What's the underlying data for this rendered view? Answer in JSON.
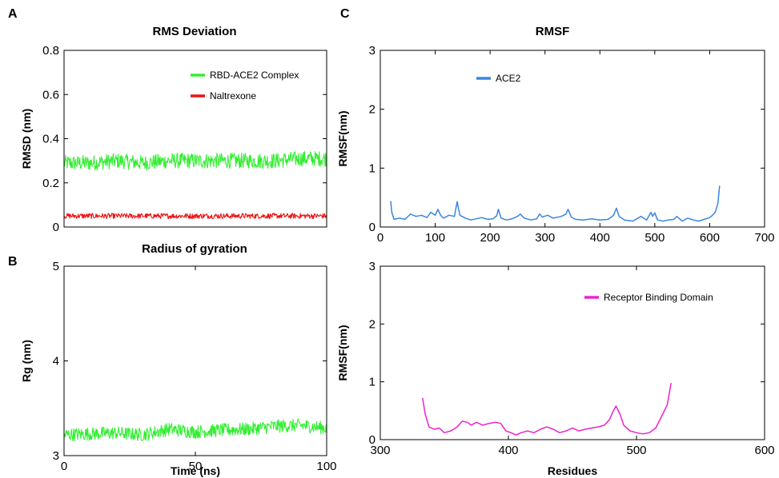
{
  "panel_letters": [
    "A",
    "B",
    "C"
  ],
  "chart_data": [
    {
      "id": "rmsd",
      "type": "line",
      "title": "RMS Deviation",
      "xlabel": "",
      "ylabel": "RMSD (nm)",
      "xlim": [
        0,
        100
      ],
      "ylim": [
        0,
        0.8
      ],
      "yticks": [
        0,
        0.2,
        0.4,
        0.6,
        0.8
      ],
      "ytick_labels": [
        "0",
        "0.2",
        "0.4",
        "0.6",
        "0.8"
      ],
      "xticks": [],
      "xtick_labels": [],
      "grid": false,
      "legend": "top-right",
      "series": [
        {
          "name": "RBD-ACE2 Complex",
          "color": "#33ee33",
          "style": "noisy",
          "x": [
            0,
            10,
            20,
            30,
            40,
            50,
            60,
            70,
            80,
            90,
            100
          ],
          "y": [
            0.29,
            0.29,
            0.3,
            0.29,
            0.3,
            0.3,
            0.3,
            0.3,
            0.3,
            0.31,
            0.31
          ],
          "noise": 0.035
        },
        {
          "name": "Naltrexone",
          "color": "#ee1111",
          "style": "noisy",
          "x": [
            0,
            20,
            40,
            60,
            80,
            100
          ],
          "y": [
            0.05,
            0.05,
            0.05,
            0.05,
            0.05,
            0.05
          ],
          "noise": 0.012
        }
      ]
    },
    {
      "id": "rg",
      "type": "line",
      "title": "Radius of gyration",
      "xlabel": "Time (ns)",
      "ylabel": "Rg (nm)",
      "xlim": [
        0,
        100
      ],
      "ylim": [
        3,
        5
      ],
      "yticks": [
        3,
        4,
        5
      ],
      "ytick_labels": [
        "3",
        "4",
        "5"
      ],
      "xticks": [
        0,
        50,
        100
      ],
      "xtick_labels": [
        "0",
        "50",
        "100"
      ],
      "grid": false,
      "legend": "none",
      "series": [
        {
          "name": "",
          "color": "#33ee33",
          "style": "noisy",
          "x": [
            0,
            10,
            20,
            30,
            40,
            50,
            60,
            70,
            80,
            90,
            100
          ],
          "y": [
            3.22,
            3.23,
            3.24,
            3.22,
            3.28,
            3.25,
            3.27,
            3.28,
            3.31,
            3.32,
            3.29
          ],
          "noise": 0.07
        }
      ]
    },
    {
      "id": "rmsf_ace2",
      "type": "line",
      "title": "RMSF",
      "xlabel": "",
      "ylabel": "RMSF(nm)",
      "xlim": [
        0,
        700
      ],
      "ylim": [
        0,
        3
      ],
      "yticks": [
        0,
        1,
        2,
        3
      ],
      "ytick_labels": [
        "0",
        "1",
        "2",
        "3"
      ],
      "xticks": [
        0,
        100,
        200,
        300,
        400,
        500,
        600,
        700
      ],
      "xtick_labels": [
        "0",
        "100",
        "200",
        "300",
        "400",
        "500",
        "600",
        "700"
      ],
      "grid": false,
      "legend": "top-center",
      "series": [
        {
          "name": "ACE2",
          "color": "#3a86e0",
          "style": "plain",
          "x": [
            19,
            21,
            25,
            35,
            45,
            55,
            65,
            75,
            85,
            92,
            100,
            105,
            110,
            115,
            125,
            135,
            140,
            145,
            155,
            165,
            175,
            185,
            195,
            205,
            212,
            215,
            220,
            230,
            240,
            250,
            255,
            262,
            275,
            285,
            290,
            295,
            305,
            315,
            330,
            338,
            342,
            348,
            355,
            370,
            385,
            400,
            415,
            425,
            430,
            435,
            445,
            460,
            475,
            485,
            493,
            496,
            500,
            505,
            515,
            525,
            535,
            540,
            550,
            560,
            570,
            580,
            590,
            600,
            605,
            610,
            615,
            618
          ],
          "y": [
            0.44,
            0.25,
            0.13,
            0.15,
            0.13,
            0.22,
            0.18,
            0.2,
            0.16,
            0.25,
            0.2,
            0.3,
            0.2,
            0.15,
            0.2,
            0.18,
            0.43,
            0.2,
            0.15,
            0.12,
            0.14,
            0.16,
            0.13,
            0.14,
            0.19,
            0.3,
            0.15,
            0.12,
            0.14,
            0.18,
            0.22,
            0.15,
            0.12,
            0.14,
            0.22,
            0.17,
            0.2,
            0.15,
            0.18,
            0.22,
            0.3,
            0.17,
            0.13,
            0.12,
            0.14,
            0.12,
            0.13,
            0.2,
            0.32,
            0.18,
            0.12,
            0.1,
            0.18,
            0.12,
            0.25,
            0.18,
            0.24,
            0.12,
            0.1,
            0.12,
            0.13,
            0.18,
            0.1,
            0.15,
            0.12,
            0.1,
            0.13,
            0.16,
            0.2,
            0.25,
            0.4,
            0.7
          ]
        }
      ]
    },
    {
      "id": "rmsf_rbd",
      "type": "line",
      "title": "",
      "xlabel": "Residues",
      "ylabel": "RMSF(nm)",
      "xlim": [
        300,
        600
      ],
      "ylim": [
        0,
        3
      ],
      "yticks": [
        0,
        1,
        2,
        3
      ],
      "ytick_labels": [
        "0",
        "1",
        "2",
        "3"
      ],
      "xticks": [
        300,
        400,
        500,
        600
      ],
      "xtick_labels": [
        "300",
        "400",
        "500",
        "600"
      ],
      "grid": false,
      "legend": "top-right",
      "series": [
        {
          "name": "Receptor Binding Domain",
          "color": "#ee22cc",
          "style": "plain",
          "x": [
            333,
            335,
            338,
            342,
            346,
            350,
            355,
            360,
            364,
            368,
            371,
            375,
            380,
            385,
            390,
            394,
            398,
            402,
            406,
            410,
            415,
            420,
            425,
            430,
            435,
            440,
            445,
            450,
            455,
            460,
            465,
            470,
            475,
            479,
            482,
            484,
            487,
            490,
            495,
            500,
            505,
            510,
            515,
            520,
            524,
            527
          ],
          "y": [
            0.72,
            0.45,
            0.22,
            0.18,
            0.2,
            0.12,
            0.15,
            0.22,
            0.32,
            0.3,
            0.25,
            0.3,
            0.25,
            0.28,
            0.3,
            0.28,
            0.15,
            0.12,
            0.08,
            0.12,
            0.15,
            0.12,
            0.18,
            0.22,
            0.18,
            0.12,
            0.15,
            0.2,
            0.15,
            0.18,
            0.2,
            0.22,
            0.25,
            0.35,
            0.5,
            0.58,
            0.45,
            0.25,
            0.15,
            0.12,
            0.1,
            0.12,
            0.2,
            0.42,
            0.6,
            0.98
          ]
        }
      ]
    }
  ]
}
